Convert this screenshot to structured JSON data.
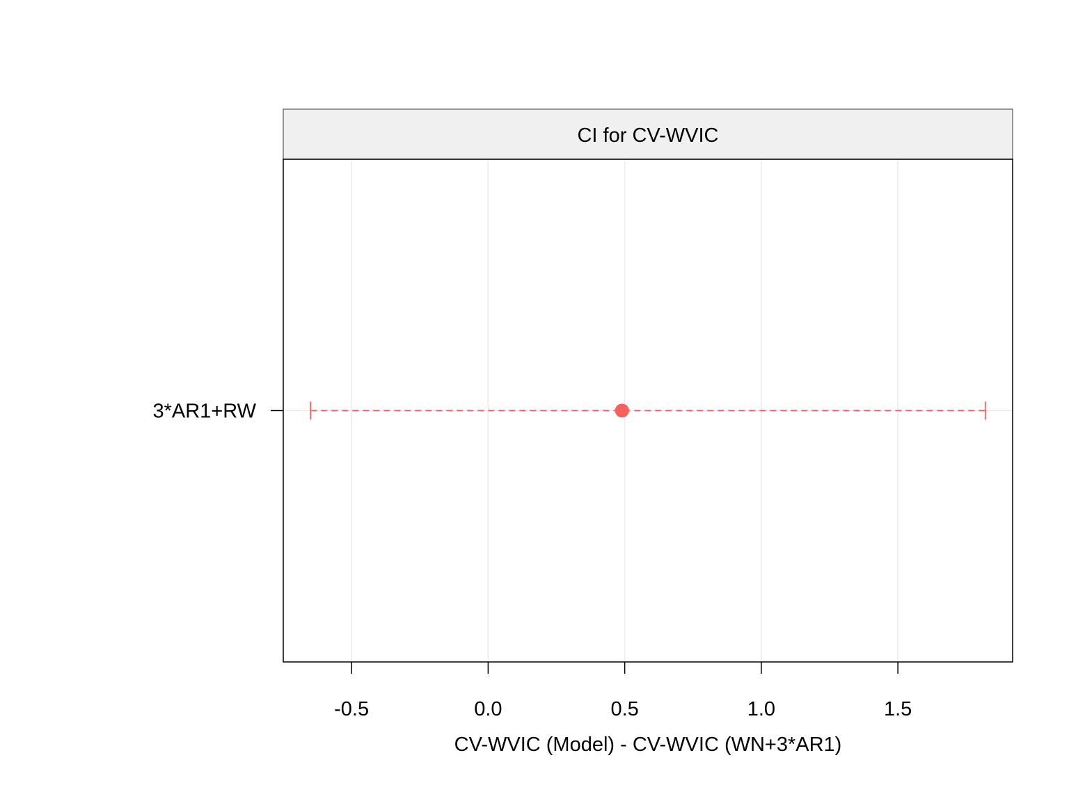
{
  "chart_data": {
    "type": "dotplot-ci",
    "title": "CI for CV-WVIC",
    "xlabel": "CV-WVIC (Model) - CV-WVIC (WN+3*AR1)",
    "ylabel": "",
    "xlim": [
      -0.75,
      1.92
    ],
    "x_ticks": [
      -0.5,
      0.0,
      0.5,
      1.0,
      1.5
    ],
    "x_tick_labels": [
      "-0.5",
      "0.0",
      "0.5",
      "1.0",
      "1.5"
    ],
    "grid": true,
    "legend": "none",
    "categories": [
      "3*AR1+RW"
    ],
    "points": [
      {
        "label": "3*AR1+RW",
        "estimate": 0.49,
        "lower": -0.65,
        "upper": 1.82
      }
    ],
    "colors": {
      "point": "#F8605E",
      "interval": "#F8605E",
      "strip_bg": "#F0F0F0",
      "grid": "#EBEBEB",
      "frame": "#000000"
    }
  }
}
